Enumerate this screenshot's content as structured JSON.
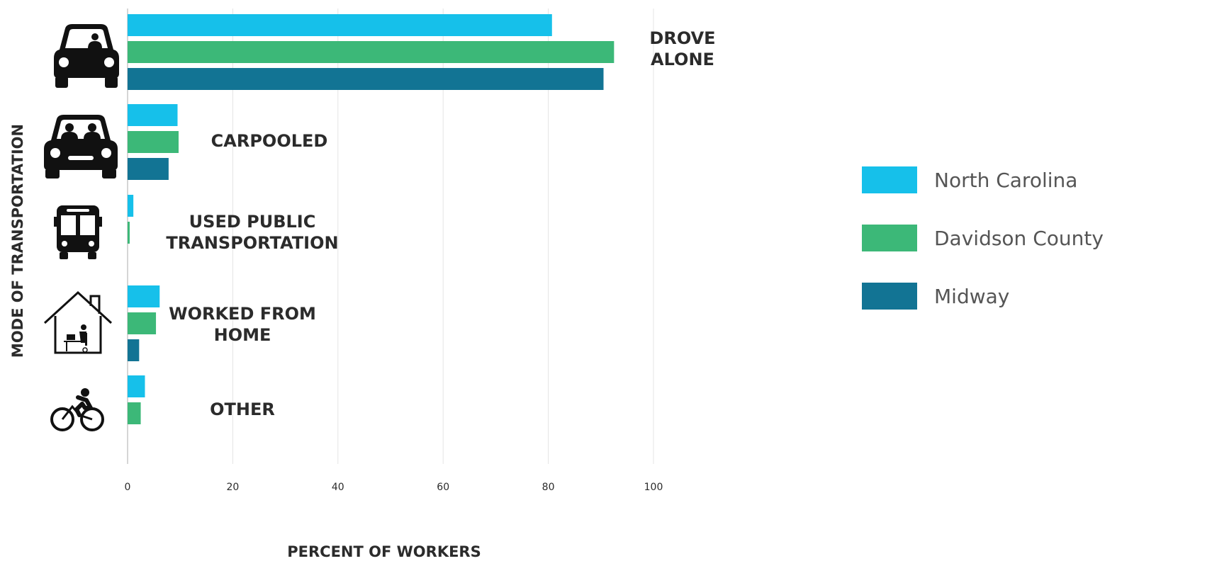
{
  "chart_data": {
    "type": "bar",
    "orientation": "horizontal",
    "categories": [
      "DROVE\nALONE",
      "CARPOOLED",
      "USED PUBLIC\nTRANSPORTATION",
      "WORKED FROM\nHOME",
      "OTHER"
    ],
    "category_icons": [
      "car-driver-icon",
      "carpool-icon",
      "bus-icon",
      "home-office-icon",
      "bicycle-icon"
    ],
    "series": [
      {
        "name": "North Carolina",
        "color": "#16c0ea",
        "values": [
          80.7,
          9.5,
          1.1,
          6.1,
          3.3
        ]
      },
      {
        "name": "Davidson County",
        "color": "#3cb878",
        "values": [
          92.5,
          9.7,
          0.4,
          5.4,
          2.5
        ]
      },
      {
        "name": "Midway",
        "color": "#127494",
        "values": [
          90.5,
          7.8,
          0,
          2.2,
          0
        ]
      }
    ],
    "xlabel": "PERCENT OF WORKERS",
    "ylabel": "MODE OF TRANSPORTATION",
    "xlim": [
      0,
      100
    ],
    "xticks": [
      0,
      20,
      40,
      60,
      80,
      100
    ],
    "grid": "vertical",
    "legend_position": "right"
  }
}
